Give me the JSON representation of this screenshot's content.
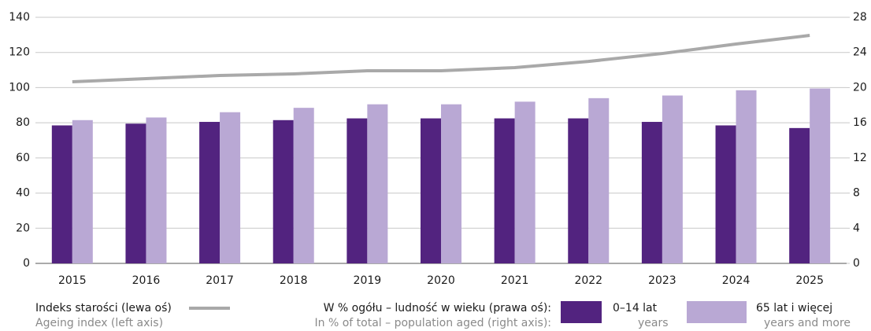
{
  "chart_data": {
    "type": "bar",
    "categories": [
      "2015",
      "2016",
      "2017",
      "2018",
      "2019",
      "2020",
      "2021",
      "2022",
      "2023",
      "2024",
      "2025"
    ],
    "ylim": [
      0,
      140
    ],
    "yticks": [
      0,
      20,
      40,
      60,
      80,
      100,
      120,
      140
    ],
    "y2lim": [
      0,
      28
    ],
    "y2ticks": [
      0,
      4,
      8,
      12,
      16,
      20,
      24,
      28
    ],
    "grid": true,
    "legend_group_title": [
      "W % ogółu – ludność w wieku (prawa oś):",
      "In % of total – population aged (right axis):"
    ],
    "series": [
      {
        "name": "Indeks starości (lewa oś)",
        "name_en": "Ageing index (left axis)",
        "type": "line",
        "axis": "y",
        "color": "#a9a9a9",
        "values": [
          103.3,
          105.1,
          106.9,
          107.8,
          109.6,
          109.6,
          111.4,
          114.9,
          119.4,
          124.8,
          129.7
        ]
      },
      {
        "name": "0–14 lat",
        "name_en": "years",
        "type": "bar",
        "axis": "y2",
        "color": "#52237f",
        "values": [
          15.7,
          15.9,
          16.1,
          16.3,
          16.5,
          16.5,
          16.5,
          16.5,
          16.1,
          15.7,
          15.4
        ]
      },
      {
        "name": "65 lat i więcej",
        "name_en": "years and more",
        "type": "bar",
        "axis": "y2",
        "color": "#b9a8d4",
        "values": [
          16.3,
          16.6,
          17.2,
          17.7,
          18.1,
          18.1,
          18.4,
          18.8,
          19.1,
          19.7,
          19.9
        ]
      }
    ]
  }
}
